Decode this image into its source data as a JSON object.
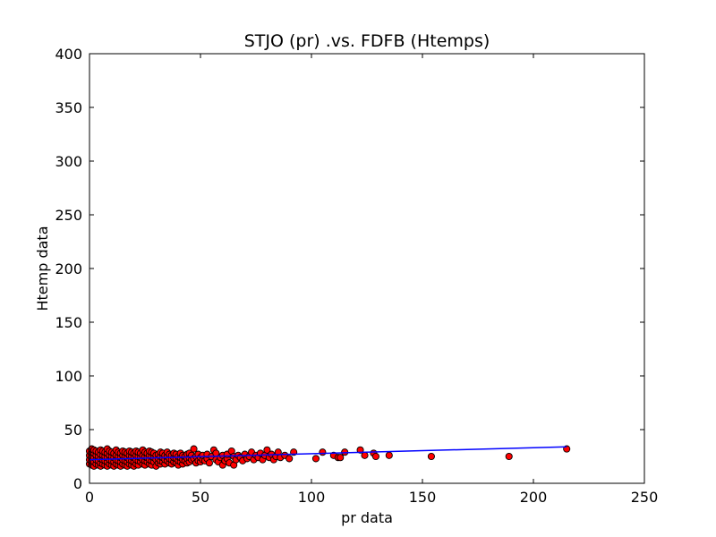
{
  "chart_data": {
    "type": "scatter",
    "title": "STJO (pr) .vs. FDFB (Htemps)",
    "xlabel": "pr data",
    "ylabel": "Htemp data",
    "xlim": [
      0,
      250
    ],
    "ylim": [
      0,
      400
    ],
    "xticks": [
      "0",
      "50",
      "100",
      "150",
      "200",
      "250"
    ],
    "yticks": [
      "0",
      "50",
      "100",
      "150",
      "200",
      "250",
      "300",
      "350",
      "400"
    ],
    "grid": false,
    "legend": "none",
    "series": [
      {
        "kind": "points",
        "color": "#ff0000",
        "edge_color": "#000000",
        "points": [
          [
            0,
            18
          ],
          [
            0,
            22
          ],
          [
            0,
            26
          ],
          [
            0,
            30
          ],
          [
            1,
            17
          ],
          [
            1,
            21
          ],
          [
            1,
            25
          ],
          [
            1,
            29
          ],
          [
            1,
            32
          ],
          [
            2,
            16
          ],
          [
            2,
            20
          ],
          [
            2,
            24
          ],
          [
            2,
            28
          ],
          [
            2,
            31
          ],
          [
            3,
            18
          ],
          [
            3,
            22
          ],
          [
            3,
            26
          ],
          [
            3,
            30
          ],
          [
            4,
            17
          ],
          [
            4,
            21
          ],
          [
            4,
            25
          ],
          [
            4,
            29
          ],
          [
            5,
            16
          ],
          [
            5,
            19
          ],
          [
            5,
            23
          ],
          [
            5,
            27
          ],
          [
            5,
            31
          ],
          [
            6,
            18
          ],
          [
            6,
            22
          ],
          [
            6,
            26
          ],
          [
            6,
            30
          ],
          [
            7,
            17
          ],
          [
            7,
            21
          ],
          [
            7,
            25
          ],
          [
            7,
            29
          ],
          [
            8,
            16
          ],
          [
            8,
            20
          ],
          [
            8,
            24
          ],
          [
            8,
            28
          ],
          [
            8,
            32
          ],
          [
            9,
            18
          ],
          [
            9,
            22
          ],
          [
            9,
            26
          ],
          [
            9,
            30
          ],
          [
            10,
            17
          ],
          [
            10,
            21
          ],
          [
            10,
            25
          ],
          [
            10,
            29
          ],
          [
            11,
            16
          ],
          [
            11,
            20
          ],
          [
            11,
            24
          ],
          [
            11,
            28
          ],
          [
            12,
            18
          ],
          [
            12,
            22
          ],
          [
            12,
            26
          ],
          [
            12,
            31
          ],
          [
            13,
            17
          ],
          [
            13,
            21
          ],
          [
            13,
            25
          ],
          [
            13,
            29
          ],
          [
            14,
            16
          ],
          [
            14,
            20
          ],
          [
            14,
            24
          ],
          [
            14,
            28
          ],
          [
            15,
            18
          ],
          [
            15,
            22
          ],
          [
            15,
            26
          ],
          [
            15,
            30
          ],
          [
            16,
            17
          ],
          [
            16,
            21
          ],
          [
            16,
            25
          ],
          [
            16,
            29
          ],
          [
            17,
            16
          ],
          [
            17,
            20
          ],
          [
            17,
            24
          ],
          [
            17,
            28
          ],
          [
            18,
            18
          ],
          [
            18,
            22
          ],
          [
            18,
            26
          ],
          [
            18,
            30
          ],
          [
            19,
            17
          ],
          [
            19,
            21
          ],
          [
            19,
            25
          ],
          [
            19,
            29
          ],
          [
            20,
            16
          ],
          [
            20,
            20
          ],
          [
            20,
            24
          ],
          [
            20,
            28
          ],
          [
            21,
            18
          ],
          [
            21,
            22
          ],
          [
            21,
            26
          ],
          [
            21,
            30
          ],
          [
            22,
            17
          ],
          [
            22,
            21
          ],
          [
            22,
            25
          ],
          [
            22,
            29
          ],
          [
            23,
            20
          ],
          [
            23,
            24
          ],
          [
            23,
            28
          ],
          [
            24,
            18
          ],
          [
            24,
            22
          ],
          [
            24,
            26
          ],
          [
            24,
            31
          ],
          [
            25,
            17
          ],
          [
            25,
            21
          ],
          [
            25,
            25
          ],
          [
            25,
            29
          ],
          [
            26,
            20
          ],
          [
            26,
            24
          ],
          [
            26,
            28
          ],
          [
            27,
            18
          ],
          [
            27,
            22
          ],
          [
            27,
            26
          ],
          [
            27,
            30
          ],
          [
            28,
            17
          ],
          [
            28,
            21
          ],
          [
            28,
            25
          ],
          [
            28,
            29
          ],
          [
            29,
            20
          ],
          [
            29,
            24
          ],
          [
            29,
            28
          ],
          [
            30,
            16
          ],
          [
            30,
            22
          ],
          [
            30,
            26
          ],
          [
            31,
            19
          ],
          [
            31,
            23
          ],
          [
            31,
            27
          ],
          [
            32,
            18
          ],
          [
            32,
            21
          ],
          [
            32,
            25
          ],
          [
            32,
            29
          ],
          [
            33,
            20
          ],
          [
            33,
            24
          ],
          [
            33,
            28
          ],
          [
            34,
            18
          ],
          [
            34,
            22
          ],
          [
            34,
            26
          ],
          [
            35,
            21
          ],
          [
            35,
            25
          ],
          [
            35,
            29
          ],
          [
            36,
            19
          ],
          [
            36,
            23
          ],
          [
            36,
            27
          ],
          [
            37,
            18
          ],
          [
            37,
            22
          ],
          [
            37,
            26
          ],
          [
            38,
            20
          ],
          [
            38,
            24
          ],
          [
            38,
            28
          ],
          [
            39,
            19
          ],
          [
            39,
            23
          ],
          [
            39,
            27
          ],
          [
            40,
            17
          ],
          [
            40,
            21
          ],
          [
            40,
            25
          ],
          [
            41,
            20
          ],
          [
            41,
            24
          ],
          [
            41,
            28
          ],
          [
            42,
            18
          ],
          [
            42,
            22
          ],
          [
            42,
            26
          ],
          [
            43,
            21
          ],
          [
            43,
            25
          ],
          [
            44,
            19
          ],
          [
            44,
            23
          ],
          [
            44,
            27
          ],
          [
            45,
            20
          ],
          [
            45,
            24
          ],
          [
            45,
            28
          ],
          [
            46,
            22
          ],
          [
            46,
            26
          ],
          [
            47,
            23
          ],
          [
            47,
            32
          ],
          [
            48,
            19
          ],
          [
            48,
            25
          ],
          [
            49,
            21
          ],
          [
            49,
            27
          ],
          [
            50,
            20
          ],
          [
            50,
            24
          ],
          [
            51,
            22
          ],
          [
            51,
            26
          ],
          [
            52,
            21
          ],
          [
            53,
            23
          ],
          [
            53,
            27
          ],
          [
            54,
            19
          ],
          [
            55,
            25
          ],
          [
            56,
            31
          ],
          [
            57,
            22
          ],
          [
            57,
            28
          ],
          [
            58,
            20
          ],
          [
            59,
            24
          ],
          [
            60,
            17
          ],
          [
            60,
            26
          ],
          [
            61,
            21
          ],
          [
            62,
            23
          ],
          [
            62,
            27
          ],
          [
            63,
            19
          ],
          [
            64,
            30
          ],
          [
            65,
            17
          ],
          [
            65,
            25
          ],
          [
            66,
            22
          ],
          [
            67,
            26
          ],
          [
            68,
            24
          ],
          [
            69,
            21
          ],
          [
            70,
            27
          ],
          [
            71,
            23
          ],
          [
            72,
            25
          ],
          [
            73,
            29
          ],
          [
            74,
            22
          ],
          [
            75,
            26
          ],
          [
            76,
            24
          ],
          [
            77,
            28
          ],
          [
            78,
            22
          ],
          [
            79,
            26
          ],
          [
            80,
            31
          ],
          [
            81,
            24
          ],
          [
            82,
            27
          ],
          [
            83,
            22
          ],
          [
            84,
            25
          ],
          [
            85,
            29
          ],
          [
            86,
            24
          ],
          [
            88,
            26
          ],
          [
            90,
            23
          ],
          [
            92,
            29
          ],
          [
            102,
            23
          ],
          [
            105,
            29
          ],
          [
            110,
            26
          ],
          [
            112,
            24
          ],
          [
            113,
            24
          ],
          [
            115,
            29
          ],
          [
            122,
            31
          ],
          [
            124,
            26
          ],
          [
            128,
            28
          ],
          [
            129,
            25
          ],
          [
            135,
            26
          ],
          [
            154,
            25
          ],
          [
            189,
            25
          ],
          [
            215,
            32
          ]
        ]
      },
      {
        "kind": "fit-line",
        "color": "#0000ff",
        "points": [
          [
            0,
            22
          ],
          [
            215,
            34
          ]
        ]
      }
    ]
  }
}
